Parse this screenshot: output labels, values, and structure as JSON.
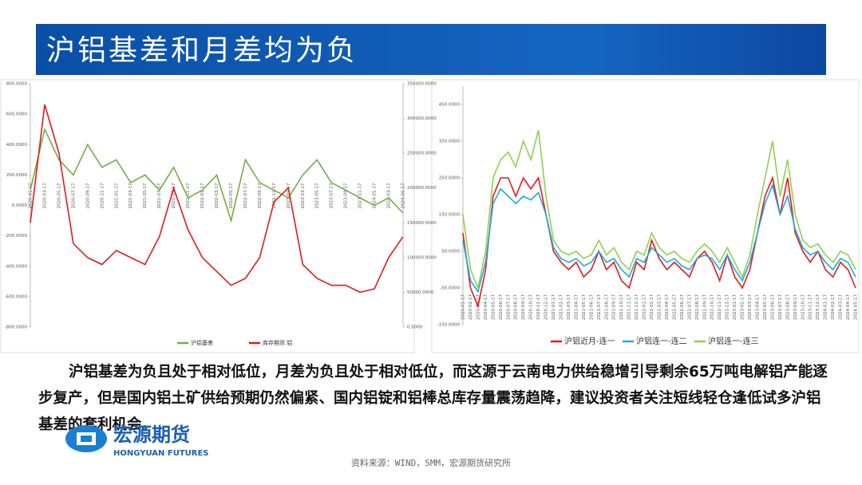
{
  "title": "沪铝基差和月差均为负",
  "paragraph": "沪铝基差为负且处于相对低位，月差为负且处于相对低位，而这源于云南电力供给稳增引导剩余65万吨电解铝产能逐步复产，但是国内铝土矿供给预期仍然偏紧、国内铝锭和铝棒总库存量震荡趋降，建议投资者关注短线轻仓逢低试多沪铝基差的套利机会。",
  "logo": {
    "name": "宏源期货",
    "english": "HONGYUAN FUTURES"
  },
  "source": "资料来源：WIND，SMM，宏源期货研究所",
  "chart_data": [
    {
      "type": "line",
      "categories": [
        "2020-01-17",
        "2020-03-17",
        "2020-05-17",
        "2020-07-17",
        "2020-09-17",
        "2020-11-17",
        "2021-01-17",
        "2021-03-17",
        "2021-05-17",
        "2021-07-17",
        "2021-09-17",
        "2021-11-17",
        "2022-01-17",
        "2022-03-17",
        "2022-05-17",
        "2022-07-17",
        "2022-09-17",
        "2022-11-17",
        "2023-01-17",
        "2023-03-17",
        "2023-05-17",
        "2023-07-17",
        "2023-09-17",
        "2023-11-17",
        "2024-01-17",
        "2024-03-17",
        "2024-05-17"
      ],
      "series": [
        {
          "name": "沪铝基差",
          "color": "#70ad47",
          "values": [
            100,
            500,
            300,
            200,
            400,
            250,
            300,
            150,
            200,
            100,
            250,
            50,
            100,
            200,
            -100,
            300,
            150,
            100,
            50,
            200,
            300,
            150,
            100,
            50,
            0,
            50,
            -50
          ]
        },
        {
          "name": "库存期货:铝",
          "color": "#e31a1c",
          "axis": "y2",
          "values": [
            150000,
            320000,
            250000,
            120000,
            100000,
            90000,
            110000,
            100000,
            90000,
            130000,
            200000,
            140000,
            100000,
            80000,
            60000,
            70000,
            100000,
            180000,
            200000,
            90000,
            70000,
            60000,
            60000,
            50000,
            55000,
            100000,
            130000
          ]
        }
      ],
      "ylim": [
        -800,
        800
      ],
      "yticks": [
        {
          "value": -800,
          "label": "-800.0000"
        },
        {
          "value": -600,
          "label": "-600.0000"
        },
        {
          "value": -400,
          "label": "-400.0000"
        },
        {
          "value": -200,
          "label": "-200.0000"
        },
        {
          "value": 0,
          "label": "0.0000"
        },
        {
          "value": 200,
          "label": "200.0000"
        },
        {
          "value": 400,
          "label": "400.0000"
        },
        {
          "value": 600,
          "label": "600.0000"
        },
        {
          "value": 800,
          "label": "800.0000"
        }
      ],
      "y2lim": [
        0,
        350000
      ],
      "y2ticks": [
        {
          "value": 0,
          "label": "0.0000"
        },
        {
          "value": 50000,
          "label": "50000.0000"
        },
        {
          "value": 100000,
          "label": "100000.0000"
        },
        {
          "value": 150000,
          "label": "150000.0000"
        },
        {
          "value": 200000,
          "label": "200000.0000"
        },
        {
          "value": 250000,
          "label": "250000.0000"
        },
        {
          "value": 300000,
          "label": "300000.0000"
        },
        {
          "value": 350000,
          "label": "350000.0000"
        }
      ]
    },
    {
      "type": "line",
      "categories": [
        "2020-01-17",
        "2020-02-17",
        "2020-03-17",
        "2020-04-17",
        "2020-05-17",
        "2020-06-17",
        "2020-07-17",
        "2020-08-17",
        "2020-09-17",
        "2020-10-17",
        "2020-11-17",
        "2020-12-17",
        "2021-01-17",
        "2021-02-17",
        "2021-03-17",
        "2021-04-17",
        "2021-05-17",
        "2021-06-17",
        "2021-07-17",
        "2021-08-17",
        "2021-09-17",
        "2021-10-17",
        "2021-11-17",
        "2021-12-17",
        "2022-01-17",
        "2022-02-17",
        "2022-03-17",
        "2022-04-17",
        "2022-05-17",
        "2022-06-17",
        "2022-07-17",
        "2022-08-17",
        "2022-09-17",
        "2022-10-17",
        "2022-11-17",
        "2022-12-17",
        "2023-01-17",
        "2023-02-17",
        "2023-03-17",
        "2023-04-17",
        "2023-05-17",
        "2023-06-17",
        "2023-07-17",
        "2023-08-17",
        "2023-09-17",
        "2023-10-17",
        "2023-11-17",
        "2023-12-17",
        "2024-01-17",
        "2024-02-17",
        "2024-03-17",
        "2024-04-17",
        "2024-05-17"
      ],
      "series": [
        {
          "name": "沪铝近月-连一",
          "color": "#e31a1c",
          "values": [
            100,
            -50,
            -100,
            0,
            200,
            250,
            250,
            200,
            250,
            220,
            250,
            150,
            50,
            20,
            0,
            20,
            -20,
            0,
            50,
            0,
            20,
            -30,
            -50,
            20,
            0,
            80,
            30,
            0,
            20,
            0,
            -20,
            30,
            50,
            20,
            -30,
            40,
            -20,
            -50,
            0,
            100,
            200,
            250,
            150,
            250,
            100,
            50,
            20,
            50,
            0,
            -20,
            20,
            0,
            -50
          ]
        },
        {
          "name": "沪铝连一-连二",
          "color": "#1fa8e0",
          "values": [
            80,
            -30,
            -60,
            20,
            180,
            220,
            200,
            180,
            200,
            190,
            210,
            150,
            60,
            30,
            20,
            30,
            10,
            20,
            50,
            20,
            30,
            0,
            -20,
            30,
            20,
            60,
            40,
            20,
            30,
            10,
            0,
            30,
            40,
            30,
            0,
            40,
            0,
            -30,
            20,
            100,
            180,
            230,
            150,
            200,
            110,
            60,
            40,
            50,
            20,
            0,
            30,
            20,
            -20
          ]
        },
        {
          "name": "沪铝连一-连三",
          "color": "#8fd14f",
          "values": [
            150,
            0,
            -50,
            50,
            250,
            300,
            320,
            280,
            350,
            300,
            380,
            200,
            80,
            50,
            40,
            50,
            30,
            40,
            80,
            40,
            60,
            20,
            0,
            50,
            40,
            100,
            60,
            40,
            50,
            30,
            20,
            50,
            70,
            50,
            20,
            60,
            20,
            -20,
            40,
            150,
            250,
            350,
            200,
            300,
            150,
            80,
            60,
            70,
            40,
            20,
            50,
            40,
            0
          ]
        }
      ],
      "ylim": [
        -150,
        500
      ],
      "yticks": [
        {
          "value": -150,
          "label": "-150.0000"
        },
        {
          "value": -50,
          "label": "-50.0000"
        },
        {
          "value": 50,
          "label": "50.0000"
        },
        {
          "value": 150,
          "label": "150.0000"
        },
        {
          "value": 250,
          "label": "250.0000"
        },
        {
          "value": 350,
          "label": "350.0000"
        },
        {
          "value": 450,
          "label": "450.0000"
        }
      ]
    }
  ]
}
